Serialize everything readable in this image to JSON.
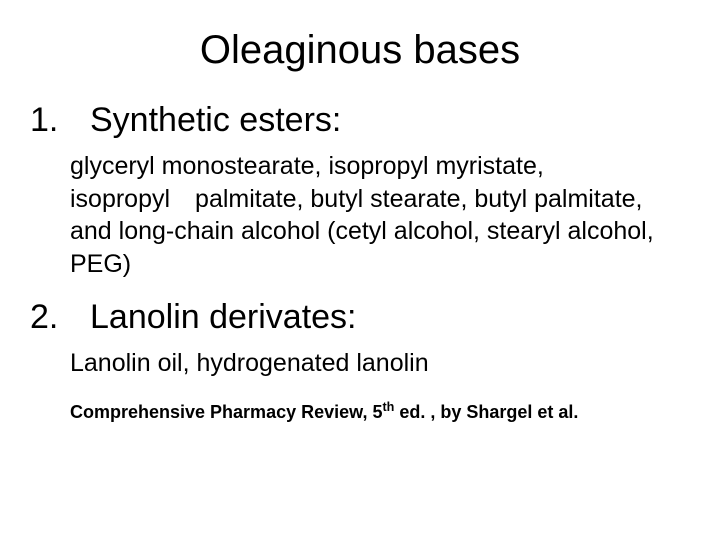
{
  "title": "Oleaginous bases",
  "sections": [
    {
      "num": "1.",
      "label": "Synthetic esters:",
      "body": "glyceryl monostearate, isopropyl myristate, isopropyl palmitate, butyl stearate, butyl palmitate, and long-chain alcohol (cetyl alcohol, stearyl alcohol, PEG)"
    },
    {
      "num": "2.",
      "label": "Lanolin derivates:",
      "body": "Lanolin oil, hydrogenated lanolin"
    }
  ],
  "citation_prefix": "Comprehensive Pharmacy Review, 5",
  "citation_sup": "th",
  "citation_suffix": " ed. , by Shargel et al.",
  "colors": {
    "background": "#ffffff",
    "text": "#000000"
  },
  "typography": {
    "title_fontsize": 40,
    "heading_fontsize": 34,
    "body_fontsize": 25,
    "citation_fontsize": 18,
    "font_family": "Arial"
  }
}
